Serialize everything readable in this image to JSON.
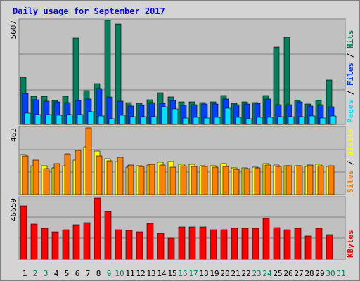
{
  "colors": {
    "background": "#c0c0c0",
    "grid": "#808080",
    "title": "#0000ff",
    "hits": "#00805c",
    "files": "#0040ff",
    "pages": "#00e0ff",
    "visits": "#ffff00",
    "sites": "#ff8000",
    "kbytes": "#ff0000",
    "weekday_label": "#000000",
    "weekend_label": "#00805c"
  },
  "chart_data": {
    "type": "bar",
    "title": "Daily usage for September 2017",
    "days": [
      "1",
      "2",
      "3",
      "4",
      "5",
      "6",
      "7",
      "8",
      "9",
      "10",
      "11",
      "12",
      "13",
      "14",
      "15",
      "16",
      "17",
      "18",
      "19",
      "20",
      "21",
      "22",
      "23",
      "24",
      "25",
      "26",
      "27",
      "28",
      "29",
      "30",
      "31"
    ],
    "weekend_days": [
      "2",
      "3",
      "9",
      "10",
      "16",
      "17",
      "23",
      "24",
      "30",
      "31"
    ],
    "panels": [
      {
        "id": "top",
        "max_label": "5607",
        "ymax": 5607,
        "right_labels": [
          {
            "text": "Pages",
            "color": "#00e0ff"
          },
          {
            "text": " / ",
            "color": "#000000"
          },
          {
            "text": "Files",
            "color": "#0040ff"
          },
          {
            "text": " / ",
            "color": "#000000"
          },
          {
            "text": "Hits",
            "color": "#00805c"
          }
        ],
        "series": [
          {
            "name": "Hits",
            "color": "#00805c",
            "values": [
              2530,
              1530,
              1510,
              1300,
              1500,
              4650,
              1820,
              2200,
              5607,
              5430,
              1190,
              1150,
              1330,
              1700,
              1480,
              1210,
              1220,
              1170,
              1200,
              1550,
              1140,
              1200,
              1190,
              1560,
              4180,
              4690,
              1300,
              1110,
              1300,
              2380,
              0
            ]
          },
          {
            "name": "Files",
            "color": "#0040ff",
            "values": [
              1680,
              1310,
              1260,
              1210,
              1180,
              1290,
              1360,
              1940,
              1460,
              1250,
              1000,
              1040,
              1180,
              1130,
              1300,
              1010,
              1070,
              1090,
              1090,
              1350,
              1060,
              1100,
              1120,
              1370,
              1050,
              1050,
              1200,
              1000,
              1060,
              960,
              0
            ]
          },
          {
            "name": "Pages",
            "color": "#00e0ff",
            "values": [
              600,
              520,
              530,
              500,
              520,
              530,
              690,
              470,
              290,
              510,
              400,
              400,
              410,
              960,
              830,
              350,
              380,
              340,
              370,
              880,
              380,
              320,
              360,
              380,
              420,
              420,
              400,
              450,
              330,
              440,
              0
            ]
          }
        ]
      },
      {
        "id": "middle",
        "max_label": "463",
        "ymax": 463,
        "right_labels": [
          {
            "text": "Sites",
            "color": "#ff8000"
          },
          {
            "text": " / ",
            "color": "#000000"
          },
          {
            "text": "Visits",
            "color": "#ffff00"
          }
        ],
        "series": [
          {
            "name": "Visits",
            "color": "#ffff00",
            "values": [
              280,
              200,
              200,
              185,
              200,
              240,
              330,
              300,
              250,
              230,
              190,
              200,
              205,
              225,
              230,
              210,
              210,
              200,
              200,
              215,
              185,
              185,
              190,
              215,
              205,
              200,
              200,
              195,
              210,
              195,
              0
            ]
          },
          {
            "name": "Sites",
            "color": "#ff8000",
            "values": [
              270,
              240,
              180,
              215,
              285,
              305,
              463,
              270,
              235,
              260,
              205,
              195,
              210,
              205,
              190,
              200,
              195,
              195,
              190,
              195,
              175,
              180,
              185,
              205,
              195,
              200,
              200,
              205,
              200,
              200,
              0
            ]
          }
        ]
      },
      {
        "id": "bottom",
        "max_label": "46659",
        "ymax": 46659,
        "right_labels": [
          {
            "text": "KBytes",
            "color": "#ff0000"
          }
        ],
        "series": [
          {
            "name": "KBytes",
            "color": "#ff0000",
            "values": [
              40600,
              27000,
              23800,
              21000,
              22300,
              26100,
              27800,
              46659,
              36500,
              22600,
              21800,
              21100,
              27600,
              19700,
              16300,
              24800,
              24800,
              24800,
              22300,
              22300,
              23700,
              23700,
              23700,
              31000,
              23900,
              22300,
              23800,
              17700,
              23800,
              18800,
              0
            ]
          }
        ]
      }
    ]
  }
}
